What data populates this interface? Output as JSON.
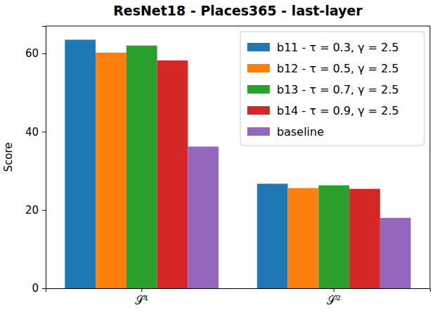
{
  "chart_data": {
    "type": "bar",
    "title": "ResNet18 - Places365 - last-layer",
    "y_label": "Score",
    "categories": [
      "𝒮¹",
      "𝒮²"
    ],
    "series": [
      {
        "name": "b11 - τ = 0.3, γ = 2.5",
        "color": "#1f77b4",
        "values": [
          63.5,
          26.7
        ]
      },
      {
        "name": "b12 - τ = 0.5, γ = 2.5",
        "color": "#ff7f0e",
        "values": [
          60.2,
          25.6
        ]
      },
      {
        "name": "b13 - τ = 0.7, γ = 2.5",
        "color": "#2ca02c",
        "values": [
          62.0,
          26.3
        ]
      },
      {
        "name": "b14 - τ = 0.9, γ = 2.5",
        "color": "#d62728",
        "values": [
          58.2,
          25.4
        ]
      },
      {
        "name": "baseline",
        "color": "#9467bd",
        "values": [
          36.2,
          18.0
        ]
      }
    ],
    "ylim": [
      0,
      67
    ],
    "yticks": [
      0,
      20,
      40,
      60
    ],
    "grid": false,
    "legend": "upper right"
  }
}
